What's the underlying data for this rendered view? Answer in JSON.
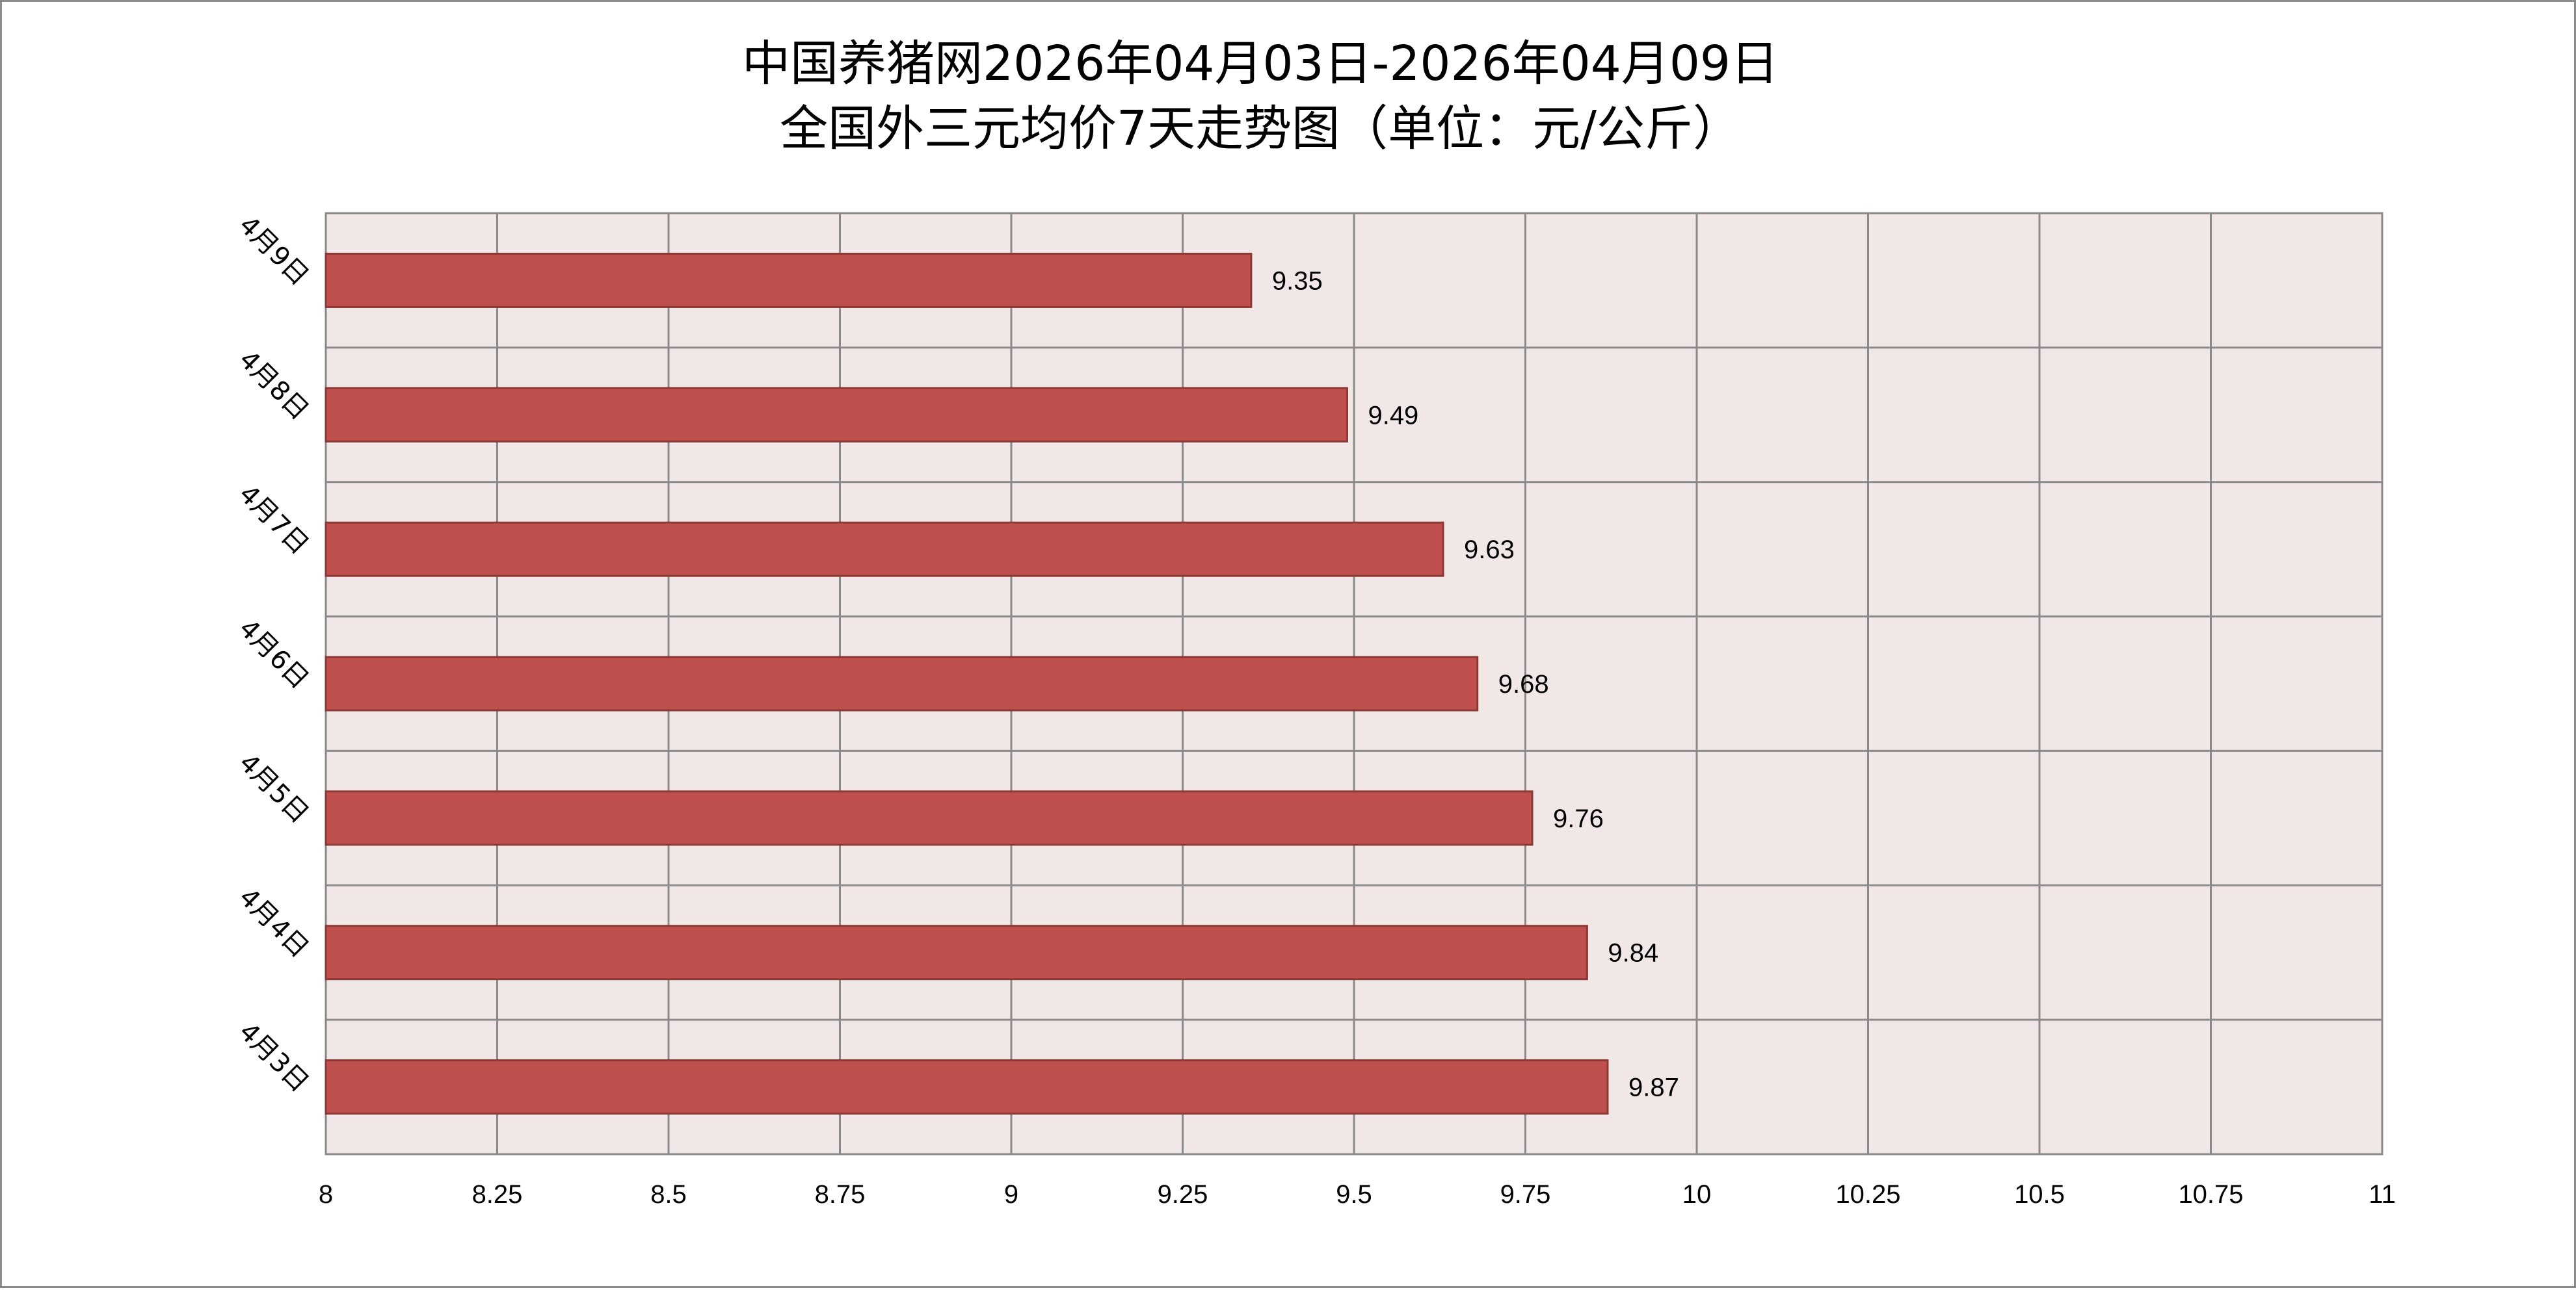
{
  "chart_data": {
    "type": "bar",
    "orientation": "horizontal",
    "title_lines": [
      "中国养猪网2026年04月03日-2026年04月09日",
      "全国外三元均价7天走势图（单位：元/公斤）"
    ],
    "categories": [
      "4月9日",
      "4月8日",
      "4月7日",
      "4月6日",
      "4月5日",
      "4月4日",
      "4月3日"
    ],
    "values": [
      9.35,
      9.49,
      9.63,
      9.68,
      9.76,
      9.84,
      9.87
    ],
    "value_labels": [
      "9.35",
      "9.49",
      "9.63",
      "9.68",
      "9.76",
      "9.84",
      "9.87"
    ],
    "xlim": [
      8,
      11
    ],
    "x_ticks": [
      8,
      8.25,
      8.5,
      8.75,
      9,
      9.25,
      9.5,
      9.75,
      10,
      10.25,
      10.5,
      10.75,
      11
    ],
    "x_tick_labels": [
      "8",
      "8.25",
      "8.5",
      "8.75",
      "9",
      "9.25",
      "9.5",
      "9.75",
      "10",
      "10.25",
      "10.5",
      "10.75",
      "11"
    ],
    "grid": true,
    "legend": "none",
    "colors": {
      "bar_fill": "#c0504d",
      "bar_stroke": "#8c3836",
      "plot_background": "#f2e7e7",
      "grid": "#8a8a8a"
    }
  }
}
